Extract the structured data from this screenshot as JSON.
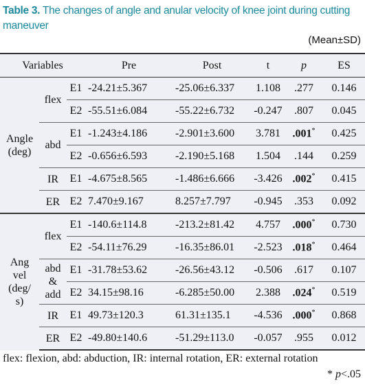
{
  "title": {
    "label": "Table 3.",
    "text": "The changes of angle and anular velocity of knee joint during cutting maneuver"
  },
  "unit_note": "(Mean±SD)",
  "table": {
    "header": [
      "Variables",
      "Pre",
      "Post",
      "t",
      "p",
      "ES"
    ],
    "groups": [
      {
        "label": [
          "Angle",
          "(deg)"
        ],
        "subgroups": [
          {
            "label": [
              "flex"
            ],
            "rows": [
              {
                "cond": "E1",
                "cells": [
                  "-24.21±5.367",
                  "-25.06±6.337",
                  "1.108",
                  ".277",
                  "0.146"
                ]
              },
              {
                "cond": "E2",
                "cells": [
                  "-55.51±6.084",
                  "-55.22±6.732",
                  "-0.247",
                  ".807",
                  "0.045"
                ]
              }
            ]
          },
          {
            "label": [
              "abd"
            ],
            "rows": [
              {
                "cond": "E1",
                "cells": [
                  "-1.243±4.186",
                  "-2.901±3.600",
                  "3.781",
                  {
                    "text": ".001",
                    "mark": "*"
                  },
                  "0.425"
                ]
              },
              {
                "cond": "E2",
                "cells": [
                  "-0.656±6.593",
                  "-2.190±5.168",
                  "1.504",
                  ".144",
                  "0.259"
                ]
              }
            ]
          },
          {
            "label": [
              "IR"
            ],
            "rows": [
              {
                "cond": "E1",
                "cells": [
                  "-4.675±8.565",
                  "-1.486±6.666",
                  "-3.426",
                  {
                    "text": ".002",
                    "mark": "*"
                  },
                  "0.415"
                ]
              }
            ]
          },
          {
            "label": [
              "ER"
            ],
            "rows": [
              {
                "cond": "E2",
                "cells": [
                  "7.470±9.167",
                  "8.257±7.797",
                  "-0.945",
                  ".353",
                  "0.092"
                ]
              }
            ]
          }
        ]
      },
      {
        "label": [
          "Ang",
          "vel",
          "(deg/",
          "s)"
        ],
        "subgroups": [
          {
            "label": [
              "flex"
            ],
            "rows": [
              {
                "cond": "E1",
                "cells": [
                  "-140.6±114.8",
                  "-213.2±81.42",
                  "4.757",
                  {
                    "text": ".000",
                    "mark": "*"
                  },
                  "0.730"
                ]
              },
              {
                "cond": "E2",
                "cells": [
                  "-54.11±76.29",
                  "-16.35±86.01",
                  "-2.523",
                  {
                    "text": ".018",
                    "mark": "*"
                  },
                  "0.464"
                ]
              }
            ]
          },
          {
            "label": [
              "abd",
              "&",
              "add"
            ],
            "rows": [
              {
                "cond": "E1",
                "cells": [
                  "-31.78±53.62",
                  "-26.56±43.12",
                  "-0.506",
                  ".617",
                  "0.107"
                ]
              },
              {
                "cond": "E2",
                "cells": [
                  "34.15±98.16",
                  "-6.285±50.00",
                  "2.388",
                  {
                    "text": ".024",
                    "mark": "*"
                  },
                  "0.519"
                ]
              }
            ]
          },
          {
            "label": [
              "IR"
            ],
            "rows": [
              {
                "cond": "E1",
                "cells": [
                  "49.73±120.3",
                  "61.31±135.1",
                  "-4.536",
                  {
                    "text": ".000",
                    "mark": "*"
                  },
                  "0.868"
                ]
              }
            ]
          },
          {
            "label": [
              "ER"
            ],
            "rows": [
              {
                "cond": "E2",
                "cells": [
                  "-49.80±140.6",
                  "-51.29±113.0",
                  "-0.057",
                  ".955",
                  "0.012"
                ]
              }
            ]
          }
        ]
      }
    ]
  },
  "footnote": {
    "text": "flex: flexion, abd: abduction, IR: internal rotation, ER: external rotation",
    "sig": [
      "*",
      "p",
      "<.05"
    ]
  }
}
